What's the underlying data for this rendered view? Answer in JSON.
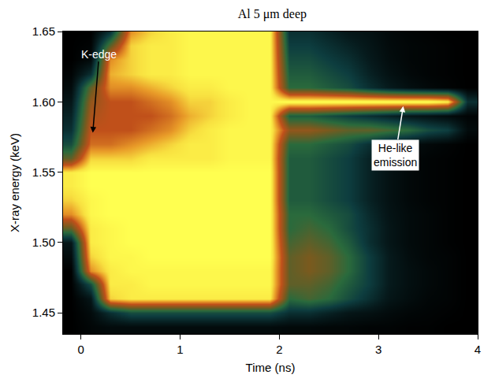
{
  "chart_data": {
    "type": "heatmap",
    "title": "Al 5 μm deep",
    "x_label": "Time (ns)",
    "y_label": "X-ray energy (keV)",
    "x": [
      -0.1,
      0.1,
      0.3,
      0.5,
      0.7,
      0.9,
      1.1,
      1.3,
      1.5,
      1.7,
      1.9,
      2.1,
      2.3,
      2.5,
      2.7,
      2.9,
      3.1,
      3.3,
      3.5,
      3.7,
      3.9
    ],
    "y": [
      1.44,
      1.45,
      1.46,
      1.47,
      1.48,
      1.49,
      1.5,
      1.51,
      1.52,
      1.53,
      1.54,
      1.55,
      1.56,
      1.57,
      1.58,
      1.59,
      1.6,
      1.61,
      1.62,
      1.63,
      1.64,
      1.65
    ],
    "z": [
      [
        0,
        0.3,
        0.5,
        0.5,
        0.5,
        0.5,
        0.5,
        0.5,
        0.5,
        0.5,
        0.5,
        0.4,
        0.4,
        0.3,
        0.3,
        0.2,
        0.2,
        0.1,
        0.1,
        0,
        0
      ],
      [
        0,
        0.5,
        2,
        3,
        3,
        3,
        3,
        3,
        3,
        3,
        3,
        2,
        2,
        1.5,
        1,
        0.8,
        0.5,
        0.3,
        0.2,
        0.1,
        0
      ],
      [
        0,
        1,
        9,
        9.5,
        9.5,
        9.5,
        9.5,
        9.5,
        9.5,
        9.5,
        9.5,
        4,
        4.5,
        4,
        3,
        2,
        1,
        0.6,
        0.3,
        0.2,
        0
      ],
      [
        0,
        3,
        9.5,
        9.5,
        9.8,
        9.8,
        9.8,
        9.8,
        9.8,
        9.8,
        9.8,
        5,
        5,
        4.5,
        3.5,
        2.5,
        1.2,
        0.7,
        0.4,
        0.2,
        0
      ],
      [
        0,
        8,
        9.5,
        9.8,
        9.8,
        9.8,
        9.8,
        9.8,
        9.8,
        9.8,
        9.8,
        5,
        5.5,
        5,
        4,
        2.5,
        1.2,
        0.7,
        0.4,
        0.2,
        0
      ],
      [
        0.5,
        9,
        9.8,
        9.8,
        10,
        10,
        10,
        10,
        10,
        10,
        10,
        5,
        5.5,
        5,
        4,
        2.5,
        1.2,
        0.6,
        0.3,
        0.2,
        0
      ],
      [
        1,
        9.5,
        9.8,
        10,
        10,
        10,
        10,
        10,
        10,
        10,
        10,
        4.5,
        5,
        4.5,
        3.5,
        2,
        1,
        0.5,
        0.3,
        0.1,
        0
      ],
      [
        5,
        9.5,
        9.8,
        10,
        10,
        10,
        10,
        10,
        10,
        10,
        10,
        4,
        4.5,
        4,
        3,
        2,
        1,
        0.5,
        0.3,
        0.1,
        0
      ],
      [
        8,
        9.8,
        10,
        10,
        10,
        10,
        10,
        10,
        10,
        10,
        10,
        4,
        4,
        3.5,
        3,
        1.8,
        0.9,
        0.5,
        0.3,
        0.1,
        0
      ],
      [
        9,
        9.8,
        10,
        10,
        10,
        10,
        10,
        10,
        10,
        10,
        10,
        3.5,
        3.5,
        3,
        2.5,
        1.5,
        0.8,
        0.4,
        0.2,
        0.1,
        0
      ],
      [
        9.5,
        10,
        10,
        10,
        10,
        10,
        10,
        10,
        10,
        10,
        10,
        3.5,
        3.5,
        3,
        2.5,
        1.5,
        0.8,
        0.4,
        0.2,
        0.1,
        0
      ],
      [
        9.5,
        10,
        10,
        10,
        10,
        10,
        10,
        10,
        10,
        10,
        10,
        3.5,
        3.5,
        3,
        2.5,
        1.5,
        0.8,
        0.4,
        0.2,
        0.1,
        0
      ],
      [
        5,
        9,
        9,
        9,
        9.5,
        9.5,
        9.5,
        9.5,
        9.8,
        9.8,
        9.8,
        3.5,
        3.5,
        3,
        2.5,
        1.5,
        0.8,
        0.4,
        0.2,
        0.1,
        0
      ],
      [
        3,
        7.5,
        7.5,
        8,
        8.5,
        9,
        9.5,
        9.5,
        9.8,
        9.8,
        9.8,
        4,
        4,
        3.5,
        3,
        2,
        1.2,
        0.7,
        0.4,
        0.2,
        0
      ],
      [
        2,
        7,
        7,
        7,
        7.5,
        8,
        9,
        9.5,
        9.8,
        9.8,
        9.8,
        6,
        6,
        5.5,
        5,
        5,
        4.5,
        4,
        3,
        2.5,
        0.5
      ],
      [
        1.5,
        6.5,
        7,
        7,
        7,
        7.5,
        8.5,
        9,
        9.5,
        9.8,
        9.8,
        3.5,
        3.5,
        3,
        2.5,
        2,
        1.5,
        1,
        0.8,
        0.5,
        0.2
      ],
      [
        1,
        6,
        7,
        7,
        7.5,
        8,
        9,
        9,
        9.5,
        9.8,
        9.8,
        10,
        10,
        10,
        10,
        10,
        10,
        10,
        10,
        9.5,
        2
      ],
      [
        0.5,
        5,
        8,
        8,
        8.5,
        9,
        9.5,
        9.5,
        9.8,
        9.8,
        9.8,
        4,
        4,
        3.5,
        3,
        2,
        1.2,
        0.7,
        0.4,
        0.2,
        0
      ],
      [
        0.2,
        2,
        8.5,
        9,
        9.5,
        9.5,
        9.8,
        9.8,
        9.8,
        9.8,
        9.8,
        3.5,
        3.5,
        3,
        2.5,
        1.5,
        0.8,
        0.4,
        0.2,
        0.1,
        0
      ],
      [
        0,
        0.5,
        8,
        9,
        9.5,
        9.5,
        9.8,
        9.8,
        9.8,
        9.8,
        9.8,
        3,
        3,
        2.5,
        2,
        1.2,
        0.6,
        0.3,
        0.2,
        0.1,
        0
      ],
      [
        0,
        0.2,
        5,
        9,
        9.5,
        9.5,
        9.8,
        9.8,
        9.8,
        9.8,
        9.8,
        2.5,
        2.5,
        2,
        1.5,
        1,
        0.5,
        0.3,
        0.2,
        0.1,
        0
      ],
      [
        0,
        0,
        2,
        8,
        9,
        9.5,
        9.8,
        9.8,
        9.8,
        9.8,
        9.8,
        2,
        2,
        1.5,
        1,
        0.8,
        0.4,
        0.2,
        0.1,
        0,
        0
      ]
    ],
    "zlim": [
      0,
      10
    ],
    "xlim": [
      -0.18,
      4
    ],
    "ylim": [
      1.435,
      1.65
    ],
    "xticks": [
      0,
      1,
      2,
      3,
      4
    ],
    "yticks": [
      {
        "value": 1.45,
        "label": "1.45"
      },
      {
        "value": 1.5,
        "label": "1.50"
      },
      1.55,
      {
        "value": 1.6,
        "label": "1.60"
      },
      1.65
    ],
    "annotations": [
      {
        "text": "K-edge",
        "x": 0.12,
        "y": 1.578
      },
      {
        "text": "He-like emission",
        "x": 3.25,
        "y": 1.597
      }
    ]
  }
}
